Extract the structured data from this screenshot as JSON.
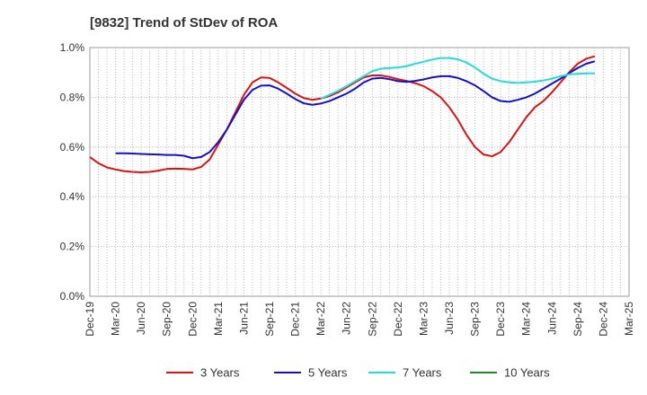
{
  "chart_data": {
    "type": "line",
    "title": "[9832]  Trend of StDev of ROA",
    "xlabel": "",
    "ylabel": "",
    "ylim": [
      0,
      1.0
    ],
    "yticks": [
      0,
      0.2,
      0.4,
      0.6,
      0.8,
      1.0
    ],
    "ytick_labels": [
      "0.0%",
      "0.2%",
      "0.4%",
      "0.6%",
      "0.8%",
      "1.0%"
    ],
    "x_tick_labels": [
      "Dec-19",
      "Mar-20",
      "Jun-20",
      "Sep-20",
      "Dec-20",
      "Mar-21",
      "Jun-21",
      "Sep-21",
      "Dec-21",
      "Mar-22",
      "Jun-22",
      "Sep-22",
      "Dec-22",
      "Mar-23",
      "Jun-23",
      "Sep-23",
      "Dec-23",
      "Mar-24",
      "Jun-24",
      "Sep-24",
      "Dec-24",
      "Mar-25"
    ],
    "grid": true,
    "legend_position": "bottom",
    "series": [
      {
        "name": "3 Years",
        "color": "#dd1111",
        "values": [
          [
            0,
            0.56
          ],
          [
            1,
            0.535
          ],
          [
            2,
            0.518
          ],
          [
            3,
            0.51
          ],
          [
            4,
            0.503
          ],
          [
            5,
            0.5
          ],
          [
            6,
            0.498
          ],
          [
            7,
            0.5
          ],
          [
            8,
            0.505
          ],
          [
            9,
            0.512
          ],
          [
            10,
            0.513
          ],
          [
            11,
            0.512
          ],
          [
            12,
            0.51
          ],
          [
            13,
            0.52
          ],
          [
            14,
            0.55
          ],
          [
            15,
            0.61
          ],
          [
            16,
            0.67
          ],
          [
            17,
            0.74
          ],
          [
            18,
            0.81
          ],
          [
            19,
            0.86
          ],
          [
            20,
            0.88
          ],
          [
            21,
            0.878
          ],
          [
            22,
            0.86
          ],
          [
            23,
            0.838
          ],
          [
            24,
            0.815
          ],
          [
            25,
            0.797
          ],
          [
            26,
            0.79
          ],
          [
            27,
            0.795
          ],
          [
            28,
            0.805
          ],
          [
            29,
            0.82
          ],
          [
            30,
            0.84
          ],
          [
            31,
            0.86
          ],
          [
            32,
            0.88
          ],
          [
            33,
            0.888
          ],
          [
            34,
            0.888
          ],
          [
            35,
            0.882
          ],
          [
            36,
            0.873
          ],
          [
            37,
            0.866
          ],
          [
            38,
            0.857
          ],
          [
            39,
            0.845
          ],
          [
            40,
            0.825
          ],
          [
            41,
            0.8
          ],
          [
            42,
            0.76
          ],
          [
            43,
            0.71
          ],
          [
            44,
            0.65
          ],
          [
            45,
            0.6
          ],
          [
            46,
            0.57
          ],
          [
            47,
            0.563
          ],
          [
            48,
            0.58
          ],
          [
            49,
            0.62
          ],
          [
            50,
            0.67
          ],
          [
            51,
            0.72
          ],
          [
            52,
            0.76
          ],
          [
            53,
            0.785
          ],
          [
            54,
            0.82
          ],
          [
            55,
            0.86
          ],
          [
            56,
            0.9
          ],
          [
            57,
            0.935
          ],
          [
            58,
            0.955
          ],
          [
            59,
            0.965
          ]
        ]
      },
      {
        "name": "5 Years",
        "color": "#1111cc",
        "values": [
          [
            3,
            0.575
          ],
          [
            4,
            0.575
          ],
          [
            5,
            0.574
          ],
          [
            6,
            0.572
          ],
          [
            7,
            0.571
          ],
          [
            8,
            0.57
          ],
          [
            9,
            0.568
          ],
          [
            10,
            0.568
          ],
          [
            11,
            0.565
          ],
          [
            12,
            0.555
          ],
          [
            13,
            0.56
          ],
          [
            14,
            0.58
          ],
          [
            15,
            0.62
          ],
          [
            16,
            0.67
          ],
          [
            17,
            0.73
          ],
          [
            18,
            0.79
          ],
          [
            19,
            0.83
          ],
          [
            20,
            0.847
          ],
          [
            21,
            0.848
          ],
          [
            22,
            0.835
          ],
          [
            23,
            0.815
          ],
          [
            24,
            0.793
          ],
          [
            25,
            0.776
          ],
          [
            26,
            0.77
          ],
          [
            27,
            0.775
          ],
          [
            28,
            0.785
          ],
          [
            29,
            0.8
          ],
          [
            30,
            0.815
          ],
          [
            31,
            0.835
          ],
          [
            32,
            0.86
          ],
          [
            33,
            0.875
          ],
          [
            34,
            0.878
          ],
          [
            35,
            0.873
          ],
          [
            36,
            0.865
          ],
          [
            37,
            0.862
          ],
          [
            38,
            0.866
          ],
          [
            39,
            0.872
          ],
          [
            40,
            0.88
          ],
          [
            41,
            0.885
          ],
          [
            42,
            0.885
          ],
          [
            43,
            0.878
          ],
          [
            44,
            0.865
          ],
          [
            45,
            0.848
          ],
          [
            46,
            0.825
          ],
          [
            47,
            0.8
          ],
          [
            48,
            0.785
          ],
          [
            49,
            0.782
          ],
          [
            50,
            0.79
          ],
          [
            51,
            0.8
          ],
          [
            52,
            0.815
          ],
          [
            53,
            0.835
          ],
          [
            54,
            0.855
          ],
          [
            55,
            0.875
          ],
          [
            56,
            0.897
          ],
          [
            57,
            0.918
          ],
          [
            58,
            0.935
          ],
          [
            59,
            0.945
          ]
        ]
      },
      {
        "name": "7 Years",
        "color": "#22dddd",
        "values": [
          [
            27,
            0.795
          ],
          [
            28,
            0.81
          ],
          [
            29,
            0.826
          ],
          [
            30,
            0.845
          ],
          [
            31,
            0.865
          ],
          [
            32,
            0.885
          ],
          [
            33,
            0.905
          ],
          [
            34,
            0.915
          ],
          [
            35,
            0.918
          ],
          [
            36,
            0.92
          ],
          [
            37,
            0.925
          ],
          [
            38,
            0.935
          ],
          [
            39,
            0.943
          ],
          [
            40,
            0.952
          ],
          [
            41,
            0.958
          ],
          [
            42,
            0.958
          ],
          [
            43,
            0.953
          ],
          [
            44,
            0.94
          ],
          [
            45,
            0.92
          ],
          [
            46,
            0.895
          ],
          [
            47,
            0.875
          ],
          [
            48,
            0.865
          ],
          [
            49,
            0.86
          ],
          [
            50,
            0.858
          ],
          [
            51,
            0.86
          ],
          [
            52,
            0.863
          ],
          [
            53,
            0.868
          ],
          [
            54,
            0.875
          ],
          [
            55,
            0.885
          ],
          [
            56,
            0.892
          ],
          [
            57,
            0.895
          ],
          [
            58,
            0.896
          ],
          [
            59,
            0.896
          ]
        ]
      },
      {
        "name": "10 Years",
        "color": "#228822",
        "values": []
      }
    ]
  }
}
